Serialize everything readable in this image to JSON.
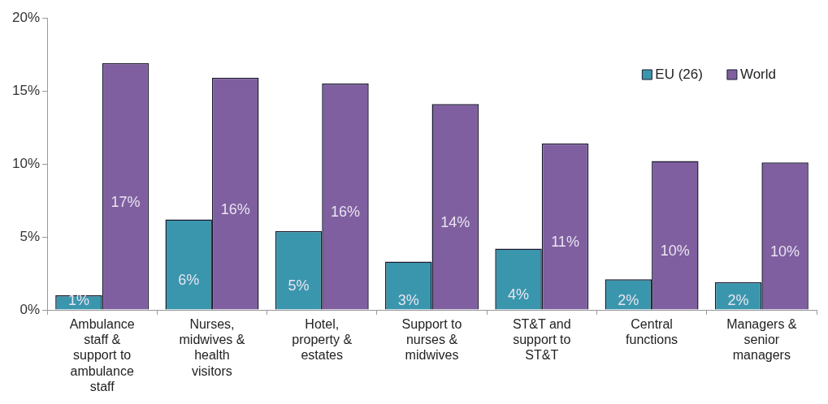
{
  "chart_data": {
    "type": "bar",
    "categories": [
      "Ambulance staff & support to ambulance staff",
      "Nurses, midwives & health visitors",
      "Hotel, property & estates",
      "Support to nurses & midwives",
      "ST&T and support to ST&T",
      "Central functions",
      "Managers & senior managers"
    ],
    "series": [
      {
        "name": "EU (26)",
        "color": "#3a96ad",
        "values": [
          1.0,
          6.2,
          5.4,
          3.3,
          4.2,
          2.1,
          1.9
        ],
        "value_labels": [
          "1%",
          "6%",
          "5%",
          "3%",
          "4%",
          "2%",
          "2%"
        ]
      },
      {
        "name": "World",
        "color": "#7f5fa0",
        "values": [
          16.9,
          15.9,
          15.5,
          14.1,
          11.4,
          10.2,
          10.1
        ],
        "value_labels": [
          "17%",
          "16%",
          "16%",
          "14%",
          "11%",
          "10%",
          "10%"
        ]
      }
    ],
    "ylim": [
      0,
      20
    ],
    "yticks": [
      {
        "value": 0,
        "label": "0%"
      },
      {
        "value": 5,
        "label": "5%"
      },
      {
        "value": 10,
        "label": "10%"
      },
      {
        "value": 15,
        "label": "15%"
      },
      {
        "value": 20,
        "label": "20%"
      }
    ],
    "grid": false,
    "legend": "top right"
  }
}
